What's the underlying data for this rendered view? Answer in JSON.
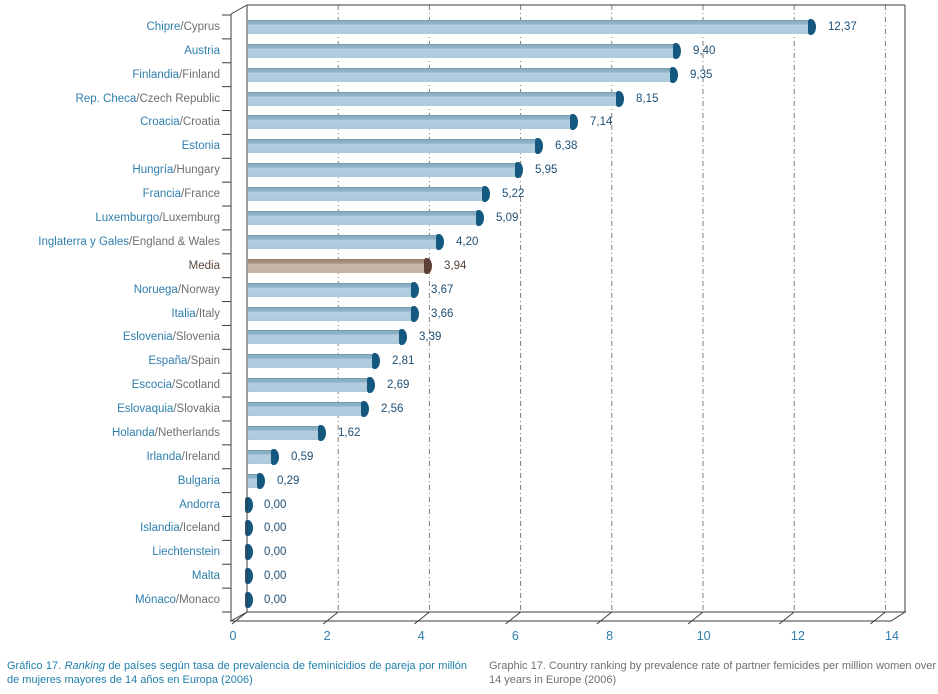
{
  "captions": {
    "left_prefix": "Gráfico 17. ",
    "left_italic": "Ranking",
    "left_rest": " de países según tasa de prevalencia de feminicidios de pareja por millón de mujeres mayores de 14 años en Europa (2006)",
    "right": "Graphic 17. Country ranking by prevalence rate of partner femicides per million women over 14 years in Europe (2006)"
  },
  "chart_data": {
    "type": "bar",
    "orientation": "horizontal",
    "unit": "partner femicides per million women over 14 years",
    "year": "2006",
    "xlim": [
      0,
      14
    ],
    "xticks": [
      0,
      2,
      4,
      6,
      8,
      10,
      12,
      14
    ],
    "grid": "vertical dash-dot gridlines at every tick, 3D floor and left wall frame",
    "legend": "none",
    "categories": [
      {
        "label_es": "Chipre",
        "label_en": "Cyprus",
        "value": 12.37,
        "display": "12,37",
        "highlight": false
      },
      {
        "label_es": "Austria",
        "label_en": null,
        "value": 9.4,
        "display": "9,40",
        "highlight": false
      },
      {
        "label_es": "Finlandia",
        "label_en": "Finland",
        "value": 9.35,
        "display": "9,35",
        "highlight": false
      },
      {
        "label_es": "Rep. Checa",
        "label_en": "Czech Republic",
        "value": 8.15,
        "display": "8,15",
        "highlight": false
      },
      {
        "label_es": "Croacia",
        "label_en": "Croatia",
        "value": 7.14,
        "display": "7,14",
        "highlight": false
      },
      {
        "label_es": "Estonia",
        "label_en": null,
        "value": 6.38,
        "display": "6,38",
        "highlight": false
      },
      {
        "label_es": "Hungría",
        "label_en": "Hungary",
        "value": 5.95,
        "display": "5,95",
        "highlight": false
      },
      {
        "label_es": "Francia",
        "label_en": "France",
        "value": 5.22,
        "display": "5,22",
        "highlight": false
      },
      {
        "label_es": "Luxemburgo",
        "label_en": "Luxemburg",
        "value": 5.09,
        "display": "5,09",
        "highlight": false
      },
      {
        "label_es": "Inglaterra y Gales",
        "label_en": "England & Wales",
        "value": 4.2,
        "display": "4,20",
        "highlight": false
      },
      {
        "label_es": "Media",
        "label_en": null,
        "value": 3.94,
        "display": "3,94",
        "highlight": true
      },
      {
        "label_es": "Noruega",
        "label_en": "Norway",
        "value": 3.67,
        "display": "3,67",
        "highlight": false
      },
      {
        "label_es": "Italia",
        "label_en": "Italy",
        "value": 3.66,
        "display": "3,66",
        "highlight": false
      },
      {
        "label_es": "Eslovenia",
        "label_en": "Slovenia",
        "value": 3.39,
        "display": "3,39",
        "highlight": false
      },
      {
        "label_es": "España",
        "label_en": "Spain",
        "value": 2.81,
        "display": "2,81",
        "highlight": false
      },
      {
        "label_es": "Escocia",
        "label_en": "Scotland",
        "value": 2.69,
        "display": "2,69",
        "highlight": false
      },
      {
        "label_es": "Eslovaquia",
        "label_en": "Slovakia",
        "value": 2.56,
        "display": "2,56",
        "highlight": false
      },
      {
        "label_es": "Holanda",
        "label_en": "Netherlands",
        "value": 1.62,
        "display": "1,62",
        "highlight": false
      },
      {
        "label_es": "Irlanda",
        "label_en": "Ireland",
        "value": 0.59,
        "display": "0,59",
        "highlight": false
      },
      {
        "label_es": "Bulgaria",
        "label_en": null,
        "value": 0.29,
        "display": "0,29",
        "highlight": false
      },
      {
        "label_es": "Andorra",
        "label_en": null,
        "value": 0.0,
        "display": "0,00",
        "highlight": false
      },
      {
        "label_es": "Islandia",
        "label_en": "Iceland",
        "value": 0.0,
        "display": "0,00",
        "highlight": false
      },
      {
        "label_es": "Liechtenstein",
        "label_en": null,
        "value": 0.0,
        "display": "0,00",
        "highlight": false
      },
      {
        "label_es": "Malta",
        "label_en": null,
        "value": 0.0,
        "display": "0,00",
        "highlight": false
      },
      {
        "label_es": "Mónaco",
        "label_en": "Monaco",
        "value": 0.0,
        "display": "0,00",
        "highlight": false
      }
    ],
    "colors": {
      "bar_fill": "#adcbdd",
      "bar_top_shade": "#8fb4c8",
      "bar_cap": "#15587f",
      "highlight_fill": "#c5b3a6",
      "highlight_cap": "#5d4035",
      "label_es": "#2e7fad",
      "label_en": "#6e6f72",
      "value_text": "#1c4f77",
      "highlight_text": "#574338",
      "gridline": "#7d7d7d",
      "frame": "#3c3c3c",
      "tick_label": "#2e7fad"
    }
  }
}
